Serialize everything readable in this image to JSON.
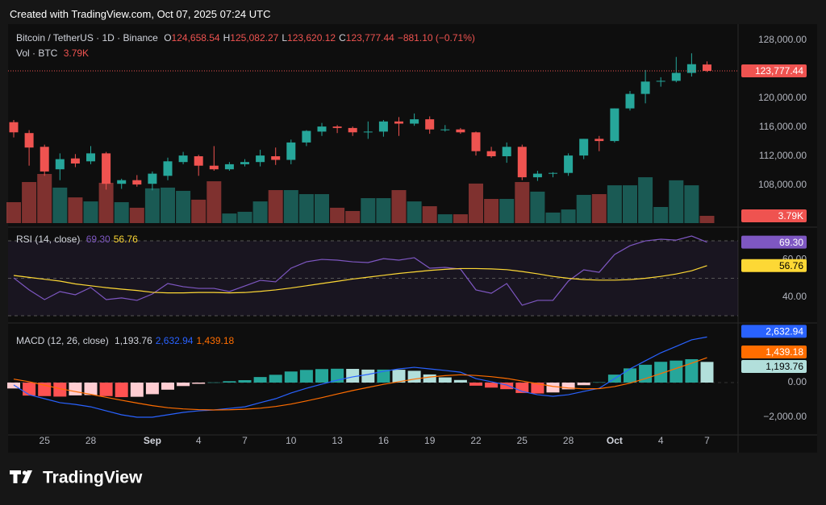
{
  "header": {
    "created": "Created with TradingView.com, Oct 07, 2025 07:24 UTC"
  },
  "footer": {
    "brand": "TradingView"
  },
  "chart_data": [
    {
      "type": "candlestick",
      "title": "Bitcoin / TetherUS · 1D · Binance",
      "legend": [
        {
          "key": "O",
          "text": "124,658.54"
        },
        {
          "key": "H",
          "text": "125,082.27"
        },
        {
          "key": "L",
          "text": "123,620.12"
        },
        {
          "key": "C",
          "text": "123,777.44"
        }
      ],
      "change": "−881.10 (−0.71%)",
      "volume_title": "Vol · BTC",
      "volume_last_label": "3.79K",
      "last_label": "123,777.44",
      "categories": [
        null,
        null,
        "25",
        null,
        null,
        "28",
        null,
        null,
        null,
        "Sep",
        null,
        null,
        "4",
        null,
        null,
        "7",
        null,
        null,
        "10",
        null,
        null,
        "13",
        null,
        null,
        "16",
        null,
        null,
        "19",
        null,
        null,
        "22",
        null,
        null,
        "25",
        null,
        null,
        "28",
        null,
        null,
        "Oct",
        null,
        null,
        "4",
        null,
        null,
        "7"
      ],
      "open": [
        116700,
        115200,
        113300,
        110200,
        111700,
        111300,
        112400,
        108200,
        108700,
        108200,
        109300,
        111200,
        112000,
        110700,
        110200,
        110900,
        111200,
        112000,
        111500,
        113900,
        115400,
        116100,
        115900,
        115300,
        115400,
        116800,
        116500,
        117100,
        115700,
        115700,
        115300,
        112700,
        112000,
        113300,
        109100,
        109600,
        109700,
        112100,
        114400,
        114100,
        118600,
        120600,
        122300,
        122400,
        123500,
        124658.54
      ],
      "high": [
        117000,
        115600,
        113600,
        112400,
        112300,
        113400,
        112600,
        108900,
        109400,
        109900,
        111800,
        112600,
        112200,
        113400,
        111200,
        111600,
        112900,
        113200,
        114300,
        115600,
        116600,
        116300,
        116100,
        116800,
        117000,
        117400,
        117900,
        117500,
        116300,
        115900,
        115400,
        113300,
        113900,
        113600,
        110000,
        109800,
        112400,
        114400,
        114800,
        118600,
        121000,
        123900,
        122900,
        125700,
        126200,
        125082.27
      ],
      "low": [
        114600,
        110700,
        109300,
        108700,
        110500,
        110900,
        107400,
        107500,
        107800,
        107300,
        108700,
        110900,
        109300,
        110000,
        110000,
        110600,
        110600,
        110800,
        110900,
        113400,
        114800,
        115200,
        114800,
        114400,
        114700,
        114800,
        116200,
        115100,
        115400,
        115100,
        112100,
        111800,
        111100,
        108700,
        108600,
        109100,
        109300,
        111600,
        112700,
        113900,
        118300,
        119300,
        121600,
        122200,
        123000,
        123620.12
      ],
      "close": [
        115300,
        113200,
        109900,
        111600,
        111000,
        112400,
        108200,
        108700,
        108100,
        109600,
        111300,
        112100,
        110700,
        110200,
        110900,
        111200,
        112100,
        111500,
        113900,
        115500,
        116100,
        115900,
        115300,
        115400,
        116800,
        116500,
        117100,
        115700,
        115700,
        115300,
        112700,
        112000,
        113300,
        109100,
        109600,
        109700,
        112100,
        114400,
        114100,
        118600,
        120600,
        122300,
        122400,
        123500,
        124700,
        123777.44
      ],
      "volume": [
        10900,
        21400,
        25600,
        18500,
        13400,
        11300,
        21000,
        10900,
        8000,
        18100,
        18500,
        16800,
        12200,
        21800,
        5000,
        5900,
        11300,
        17200,
        17200,
        15100,
        15100,
        8000,
        6300,
        13000,
        13000,
        17200,
        11300,
        8800,
        4600,
        4600,
        20600,
        12600,
        12600,
        21400,
        16400,
        5500,
        7100,
        14700,
        15100,
        19700,
        19700,
        23900,
        8400,
        22300,
        19700,
        3790
      ],
      "up_color": "#26a69a",
      "down_color": "#ef5350",
      "ylim": [
        102778,
        129333
      ],
      "yticks": [
        {
          "value": 128000,
          "label": "128,000.00"
        },
        {
          "value": 120000,
          "label": "120,000.00"
        },
        {
          "value": 116000,
          "label": "116,000.00"
        },
        {
          "value": 112000,
          "label": "112,000.00"
        },
        {
          "value": 108000,
          "label": "108,000.00"
        }
      ],
      "grid": false
    },
    {
      "type": "line",
      "title": "RSI (14, close)",
      "series": [
        {
          "color": "#7e57c2",
          "last_label": "69.30",
          "values": [
            50.2,
            43.8,
            38.6,
            42.9,
            41.2,
            45.1,
            38.6,
            39.5,
            38.2,
            41.6,
            47.2,
            45.5,
            44.6,
            44.6,
            42.9,
            45.9,
            48.9,
            48.1,
            55.4,
            58.8,
            60.1,
            59.7,
            58.8,
            58.4,
            60.5,
            59.7,
            61.0,
            55.4,
            55.8,
            54.9,
            43.8,
            42.0,
            47.2,
            35.6,
            38.2,
            38.2,
            48.5,
            54.5,
            53.2,
            62.7,
            67.4,
            70.0,
            70.9,
            70.4,
            72.6,
            69.3
          ]
        },
        {
          "color": "#fdd835",
          "last_label": "56.76",
          "values": [
            51.5,
            50.5,
            49.5,
            48.5,
            47.0,
            46.0,
            45.0,
            44.2,
            43.5,
            42.5,
            42.2,
            42.2,
            42.4,
            42.4,
            42.2,
            42.4,
            43.0,
            43.8,
            44.8,
            46.0,
            47.2,
            48.4,
            49.6,
            50.6,
            51.6,
            52.6,
            53.4,
            54.2,
            54.8,
            55.2,
            55.2,
            55.0,
            54.6,
            53.6,
            52.4,
            51.0,
            50.0,
            49.3,
            49.0,
            49.0,
            49.3,
            50.0,
            51.0,
            52.3,
            54.0,
            56.76
          ]
        }
      ],
      "levels": [
        70,
        50,
        30
      ],
      "ylim": [
        27.4,
        73.9
      ],
      "yticks": [
        {
          "value": 60,
          "label": "60.00"
        },
        {
          "value": 40,
          "label": "40.00"
        }
      ]
    },
    {
      "type": "macd",
      "title": "MACD (12, 26, close)",
      "histogram": {
        "last_label": "1,193.76",
        "colors": {
          "pos_up": "#26a69a",
          "pos_down": "#b2dfdb",
          "neg_up": "#ffcdd2",
          "neg_down": "#ff5252"
        },
        "values": [
          -340,
          -750,
          -780,
          -810,
          -740,
          -720,
          -780,
          -840,
          -820,
          -670,
          -410,
          -200,
          -70,
          10,
          80,
          140,
          320,
          450,
          640,
          730,
          780,
          800,
          790,
          750,
          750,
          740,
          680,
          470,
          300,
          150,
          -180,
          -290,
          -380,
          -600,
          -630,
          -570,
          -390,
          -150,
          20,
          460,
          820,
          1030,
          1200,
          1270,
          1350,
          1193.76
        ]
      },
      "series": [
        {
          "color": "#2962ff",
          "last_label": "2,632.94",
          "values": [
            -140,
            -700,
            -930,
            -1160,
            -1260,
            -1400,
            -1630,
            -1860,
            -2000,
            -2000,
            -1860,
            -1720,
            -1630,
            -1580,
            -1490,
            -1400,
            -1160,
            -930,
            -600,
            -330,
            -90,
            140,
            330,
            470,
            650,
            790,
            880,
            790,
            700,
            600,
            230,
            50,
            -140,
            -510,
            -700,
            -790,
            -700,
            -510,
            -330,
            230,
            790,
            1260,
            1720,
            2090,
            2470,
            2632.94
          ]
        },
        {
          "color": "#ff6d00",
          "last_label": "1,439.18",
          "values": [
            200,
            50,
            -150,
            -350,
            -520,
            -680,
            -850,
            -1020,
            -1180,
            -1330,
            -1450,
            -1520,
            -1560,
            -1580,
            -1570,
            -1540,
            -1480,
            -1380,
            -1240,
            -1060,
            -870,
            -660,
            -460,
            -280,
            -100,
            50,
            200,
            320,
            400,
            450,
            410,
            340,
            240,
            90,
            -70,
            -220,
            -310,
            -360,
            -350,
            -230,
            -30,
            230,
            520,
            820,
            1120,
            1439.18
          ]
        }
      ],
      "ylim": [
        -3023,
        3256
      ],
      "yticks": [
        {
          "value": 0,
          "label": "0.00"
        },
        {
          "value": -2000,
          "label": "−2,000.00"
        }
      ]
    }
  ]
}
